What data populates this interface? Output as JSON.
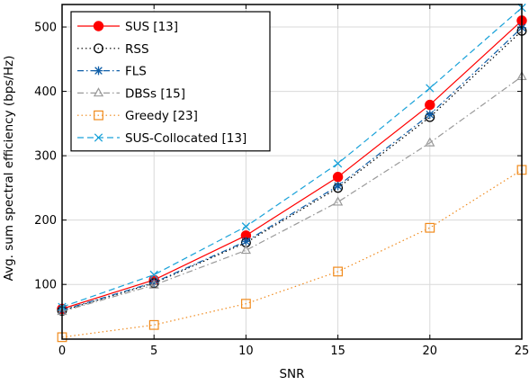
{
  "chart_data": {
    "type": "line",
    "xlabel": "SNR",
    "ylabel": "Avg. sum spectral efficiency (bps/Hz)",
    "xlim": [
      0,
      25
    ],
    "ylim": [
      15,
      535
    ],
    "xticks": [
      0,
      5,
      10,
      15,
      20,
      25
    ],
    "yticks": [
      100,
      200,
      300,
      400,
      500
    ],
    "grid": true,
    "legend_position": "top-left",
    "x": [
      0,
      5,
      10,
      15,
      20,
      25
    ],
    "series": [
      {
        "name": "SUS [13]",
        "color": "#ff0000",
        "linestyle": "solid",
        "marker": "filled-circle",
        "values": [
          62,
          107,
          176,
          267,
          379,
          510
        ]
      },
      {
        "name": "RSS",
        "color": "#000000",
        "linestyle": "dotted",
        "marker": "open-circle",
        "values": [
          59,
          102,
          165,
          250,
          360,
          494
        ]
      },
      {
        "name": "FLS",
        "color": "#0f5ea8",
        "linestyle": "dashdot",
        "marker": "asterisk",
        "values": [
          60,
          103,
          167,
          253,
          364,
          499
        ]
      },
      {
        "name": "DBSs [15]",
        "color": "#999999",
        "linestyle": "dashdot",
        "marker": "open-triangle",
        "values": [
          58,
          99,
          153,
          228,
          320,
          423
        ]
      },
      {
        "name": "Greedy [23]",
        "color": "#f08a1c",
        "linestyle": "dotted",
        "marker": "open-square",
        "values": [
          18,
          37,
          70,
          120,
          188,
          278
        ]
      },
      {
        "name": "SUS-Collocated [13]",
        "color": "#1aa2d9",
        "linestyle": "dashed",
        "marker": "cross",
        "values": [
          65,
          115,
          190,
          288,
          405,
          530
        ]
      }
    ]
  }
}
